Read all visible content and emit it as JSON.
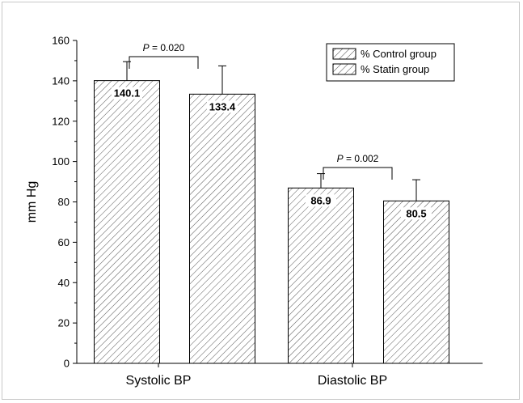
{
  "chart_data": {
    "type": "bar",
    "categories": [
      "Systolic BP",
      "Diastolic BP"
    ],
    "series": [
      {
        "name": "% Control group",
        "values": [
          140.1,
          86.9
        ],
        "errors": [
          9.4,
          7.1
        ]
      },
      {
        "name": "% Statin group",
        "values": [
          133.4,
          80.5
        ],
        "errors": [
          14.0,
          10.5
        ]
      }
    ],
    "value_labels": [
      [
        "140.1",
        "86.9"
      ],
      [
        "133.4",
        "80.5"
      ]
    ],
    "significance": [
      {
        "category_index": 0,
        "p_prefix": "P",
        "p_suffix": " = 0.020"
      },
      {
        "category_index": 1,
        "p_prefix": "P",
        "p_suffix": " = 0.002"
      }
    ],
    "title": "",
    "xlabel": "",
    "ylabel": "mm Hg",
    "ylim": [
      0,
      160
    ],
    "yticks": [
      0,
      20,
      40,
      60,
      80,
      100,
      120,
      140,
      160
    ],
    "ytick_labels": [
      "0",
      "20",
      "40",
      "60",
      "80",
      "100",
      "120",
      "140",
      "160"
    ],
    "grid": false,
    "legend_position": "top-right",
    "bar_fill": "diagonal-hatch",
    "colors": {
      "bar_stroke": "#000000",
      "hatch": "#555555",
      "frame": "#c8c8c8"
    }
  }
}
